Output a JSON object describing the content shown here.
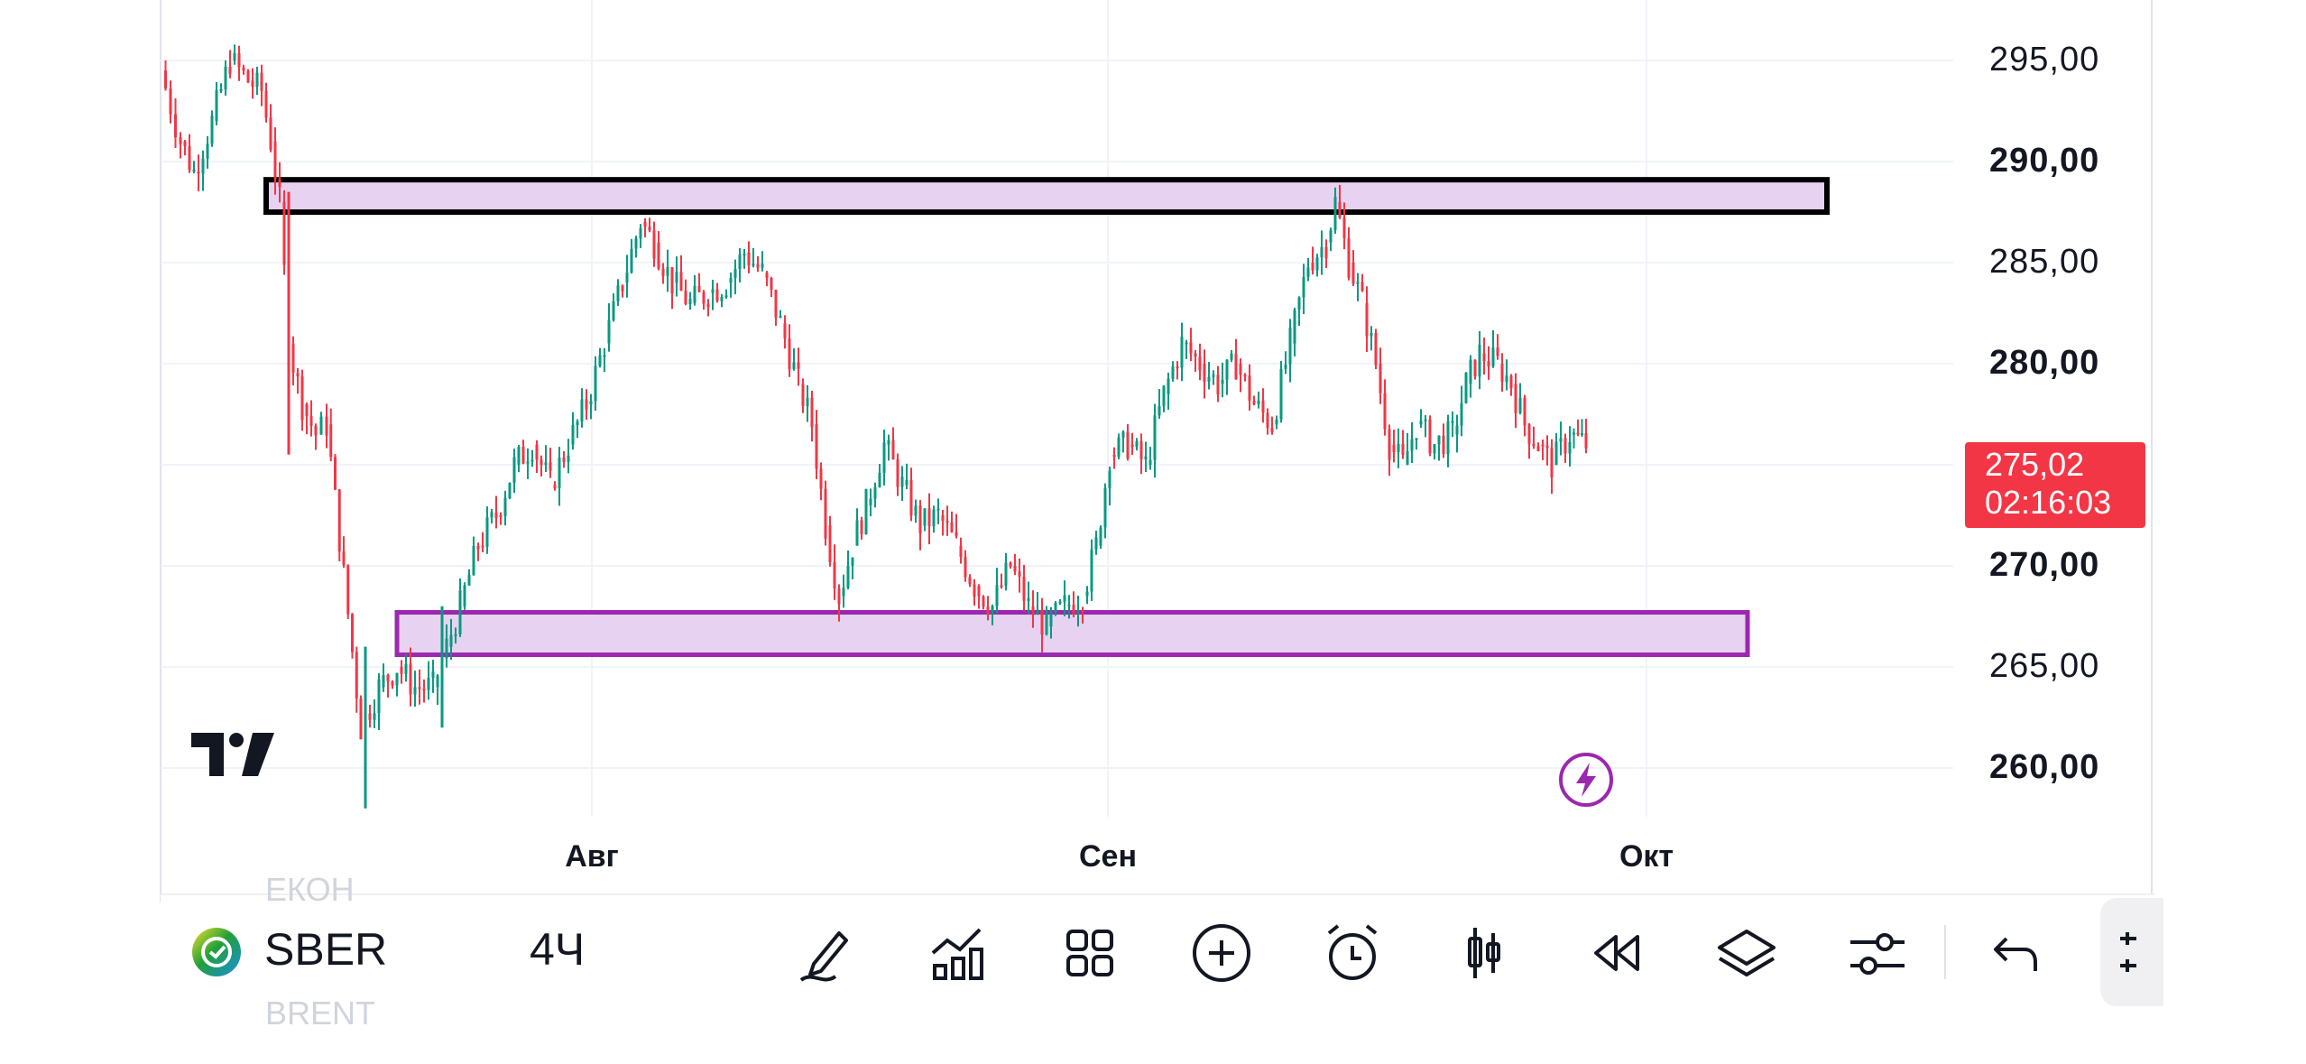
{
  "app": {
    "name": "TradingView"
  },
  "chart": {
    "symbol": "SBER",
    "interval": "4Ч",
    "price_axis": [
      "295,00",
      "290,00",
      "285,00",
      "280,00",
      "270,00",
      "265,00",
      "260,00"
    ],
    "time_axis": [
      "Авг",
      "Сен",
      "Окт"
    ],
    "last_price": {
      "value": "275,02",
      "countdown": "02:16:03",
      "color": "#f23645"
    },
    "up_color": "#089981",
    "down_color": "#f23645",
    "zones": [
      {
        "name": "resistance-zone",
        "from": 287.5,
        "to": 289.1,
        "fill": "#e8d2f1",
        "stroke": "#000000"
      },
      {
        "name": "support-zone",
        "from": 265.6,
        "to": 267.7,
        "fill": "#e8d2f1",
        "stroke": "#9c27b0"
      }
    ]
  },
  "toolbar": {
    "ghost_above": "ЕКОН",
    "ghost_below": "BRENT",
    "icons": [
      "draw-icon",
      "indicators-icon",
      "layouts-icon",
      "add-icon",
      "alert-icon",
      "chart-type-icon",
      "replay-icon",
      "layers-icon",
      "settings-icon",
      "undo-icon",
      "more-icon"
    ]
  }
}
